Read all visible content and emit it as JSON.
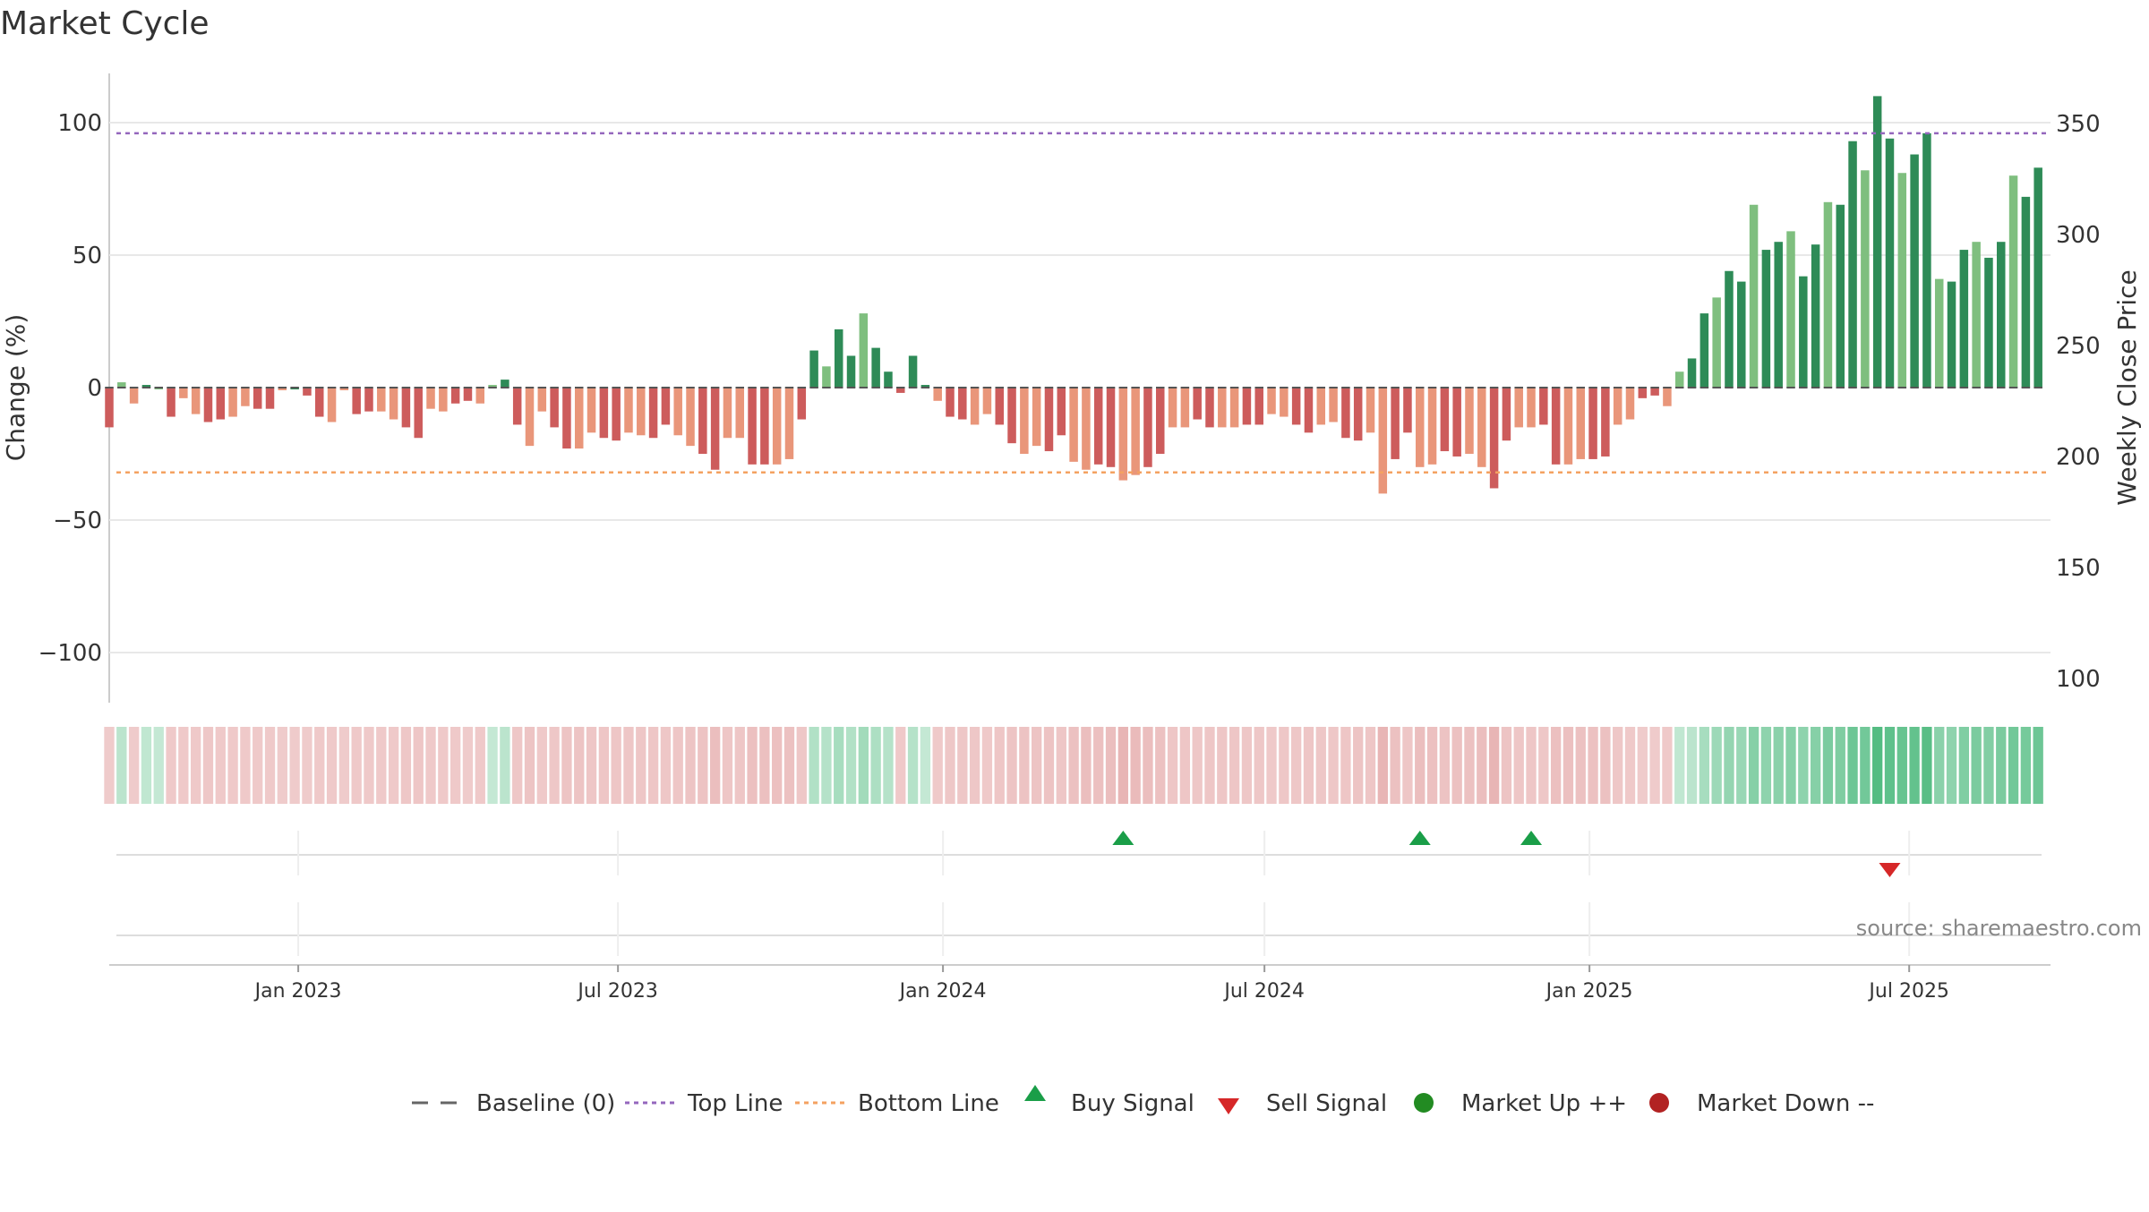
{
  "chart_data": {
    "type": "bar",
    "title": "Market Cycle",
    "ylabel": "Change (%)",
    "y2label": "Weekly Close Price",
    "ylim": [
      -120,
      120
    ],
    "yticks": [
      100,
      50,
      0,
      -50,
      -100
    ],
    "y2lim": [
      95,
      370
    ],
    "y2ticks": [
      350,
      300,
      250,
      200,
      150,
      100
    ],
    "x_start": "2022-09-16",
    "x_end": "2025-09-19",
    "x_tick_labels": [
      {
        "date": "2023-01-01",
        "label": "Jan 2023"
      },
      {
        "date": "2023-07-01",
        "label": "Jul 2023"
      },
      {
        "date": "2024-01-01",
        "label": "Jan 2024"
      },
      {
        "date": "2024-07-01",
        "label": "Jul 2024"
      },
      {
        "date": "2025-01-01",
        "label": "Jan 2025"
      },
      {
        "date": "2025-07-01",
        "label": "Jul 2025"
      }
    ],
    "first_bar_date": "2022-09-16",
    "bar_interval_days": 7,
    "values": [
      -15,
      2,
      -6,
      1,
      0,
      -11,
      -4,
      -10,
      -13,
      -12,
      -11,
      -7,
      -8,
      -8,
      -1,
      0,
      -3,
      -11,
      -13,
      -1,
      -10,
      -9,
      -9,
      -12,
      -15,
      -19,
      -8,
      -9,
      -6,
      -5,
      -6,
      1,
      3,
      -14,
      -22,
      -9,
      -15,
      -23,
      -23,
      -17,
      -19,
      -20,
      -17,
      -18,
      -19,
      -14,
      -18,
      -22,
      -25,
      -31,
      -19,
      -19,
      -29,
      -29,
      -29,
      -27,
      -12,
      14,
      8,
      22,
      12,
      28,
      15,
      6,
      -2,
      12,
      1,
      -5,
      -11,
      -12,
      -14,
      -10,
      -14,
      -21,
      -25,
      -22,
      -24,
      -18,
      -28,
      -31,
      -29,
      -30,
      -35,
      -33,
      -30,
      -25,
      -15,
      -15,
      -12,
      -15,
      -15,
      -15,
      -14,
      -14,
      -10,
      -11,
      -14,
      -17,
      -14,
      -13,
      -19,
      -20,
      -17,
      -40,
      -27,
      -17,
      -30,
      -29,
      -24,
      -26,
      -25,
      -30,
      -38,
      -20,
      -15,
      -15,
      -14,
      -29,
      -29,
      -27,
      -27,
      -26,
      -14,
      -12,
      -4,
      -3,
      -7,
      6,
      11,
      28,
      34,
      44,
      40,
      69,
      52,
      55,
      59,
      42,
      54,
      70,
      69,
      93,
      82,
      110,
      94,
      81,
      88,
      96,
      41,
      40,
      52,
      55,
      49,
      55,
      80,
      72,
      83
    ],
    "band_levels": [
      0.35,
      -0.4,
      -0.35,
      -0.45,
      -0.4,
      -0.35,
      -0.35,
      -0.45
    ],
    "band_level_source": "band",
    "bands": [
      [
        -0.32,
        0.35,
        -0.32,
        0.32,
        0.3,
        -0.33,
        -0.33,
        -0.33,
        -0.34,
        -0.33,
        -0.33,
        -0.33,
        -0.33,
        -0.33,
        -0.32,
        -0.32,
        -0.32,
        -0.33,
        -0.33,
        -0.32,
        -0.33,
        -0.33,
        -0.33,
        -0.33,
        -0.34,
        -0.35,
        -0.33,
        -0.33,
        -0.33,
        -0.32,
        -0.33,
        0.3,
        0.35,
        -0.34,
        -0.36,
        -0.33,
        -0.34,
        -0.36,
        -0.36,
        -0.35,
        -0.35,
        -0.35,
        -0.35,
        -0.35,
        -0.35,
        -0.34,
        -0.35,
        -0.36,
        -0.37,
        -0.4,
        -0.35,
        -0.35,
        -0.39,
        -0.39,
        -0.39,
        -0.38,
        -0.34,
        0.4,
        0.38,
        0.45,
        0.4,
        0.48,
        0.42,
        0.38,
        -0.33,
        0.38,
        0.3,
        -0.33,
        -0.34,
        -0.34,
        -0.34,
        -0.33,
        -0.35,
        -0.36,
        -0.37,
        -0.36,
        -0.37,
        -0.35,
        -0.38,
        -0.4,
        -0.39,
        -0.4,
        -0.45,
        -0.42,
        -0.4,
        -0.38,
        -0.35,
        -0.35,
        -0.34,
        -0.35,
        -0.35,
        -0.35,
        -0.34,
        -0.34,
        -0.33,
        -0.34,
        -0.34,
        -0.35,
        -0.34,
        -0.34,
        -0.35,
        -0.36,
        -0.35,
        -0.45,
        -0.38,
        -0.35,
        -0.4,
        -0.39,
        -0.37,
        -0.38,
        -0.38,
        -0.4,
        -0.45,
        -0.36,
        -0.35,
        -0.35,
        -0.34,
        -0.39,
        -0.39,
        -0.38,
        -0.38,
        -0.38,
        -0.34,
        -0.33,
        -0.32,
        -0.32,
        -0.33,
        0.32,
        0.35,
        0.45,
        0.5,
        0.55,
        0.52,
        0.62,
        0.58,
        0.6,
        0.62,
        0.58,
        0.62,
        0.68,
        0.66,
        0.75,
        0.72,
        0.88,
        0.82,
        0.78,
        0.8,
        0.85,
        0.6,
        0.58,
        0.65,
        0.68,
        0.64,
        0.68,
        0.72,
        0.7,
        0.75
      ]
    ],
    "price_line": "none",
    "top_line": 96,
    "bottom_line": -32,
    "buy_signals": [
      "2024-04-12",
      "2024-09-27",
      "2024-11-29"
    ],
    "sell_signals": [
      "2025-06-20"
    ],
    "series": [
      {
        "name": "Baseline (0)",
        "style": "dash",
        "color": "#666666"
      },
      {
        "name": "Top Line",
        "style": "dotted",
        "color": "#9467bd"
      },
      {
        "name": "Bottom Line",
        "style": "dotted",
        "color": "#f4a261"
      },
      {
        "name": "Buy Signal",
        "style": "triangle-up",
        "color": "#1a9e48"
      },
      {
        "name": "Sell Signal",
        "style": "triangle-down",
        "color": "#d62728"
      },
      {
        "name": "Market Up ++",
        "style": "circle",
        "color": "#228b22"
      },
      {
        "name": "Market Down --",
        "style": "circle",
        "color": "#b22222"
      }
    ],
    "legend_position": "bottom",
    "grid": true,
    "source": "source: sharemaestro.com",
    "colors": {
      "strong_up": "#2e8b57",
      "mild_up": "#7fbf7f",
      "strong_down": "#cd5c5c",
      "mild_down": "#e9967a",
      "band_up": "#3cb371",
      "band_down": "#cd5c5c"
    }
  }
}
